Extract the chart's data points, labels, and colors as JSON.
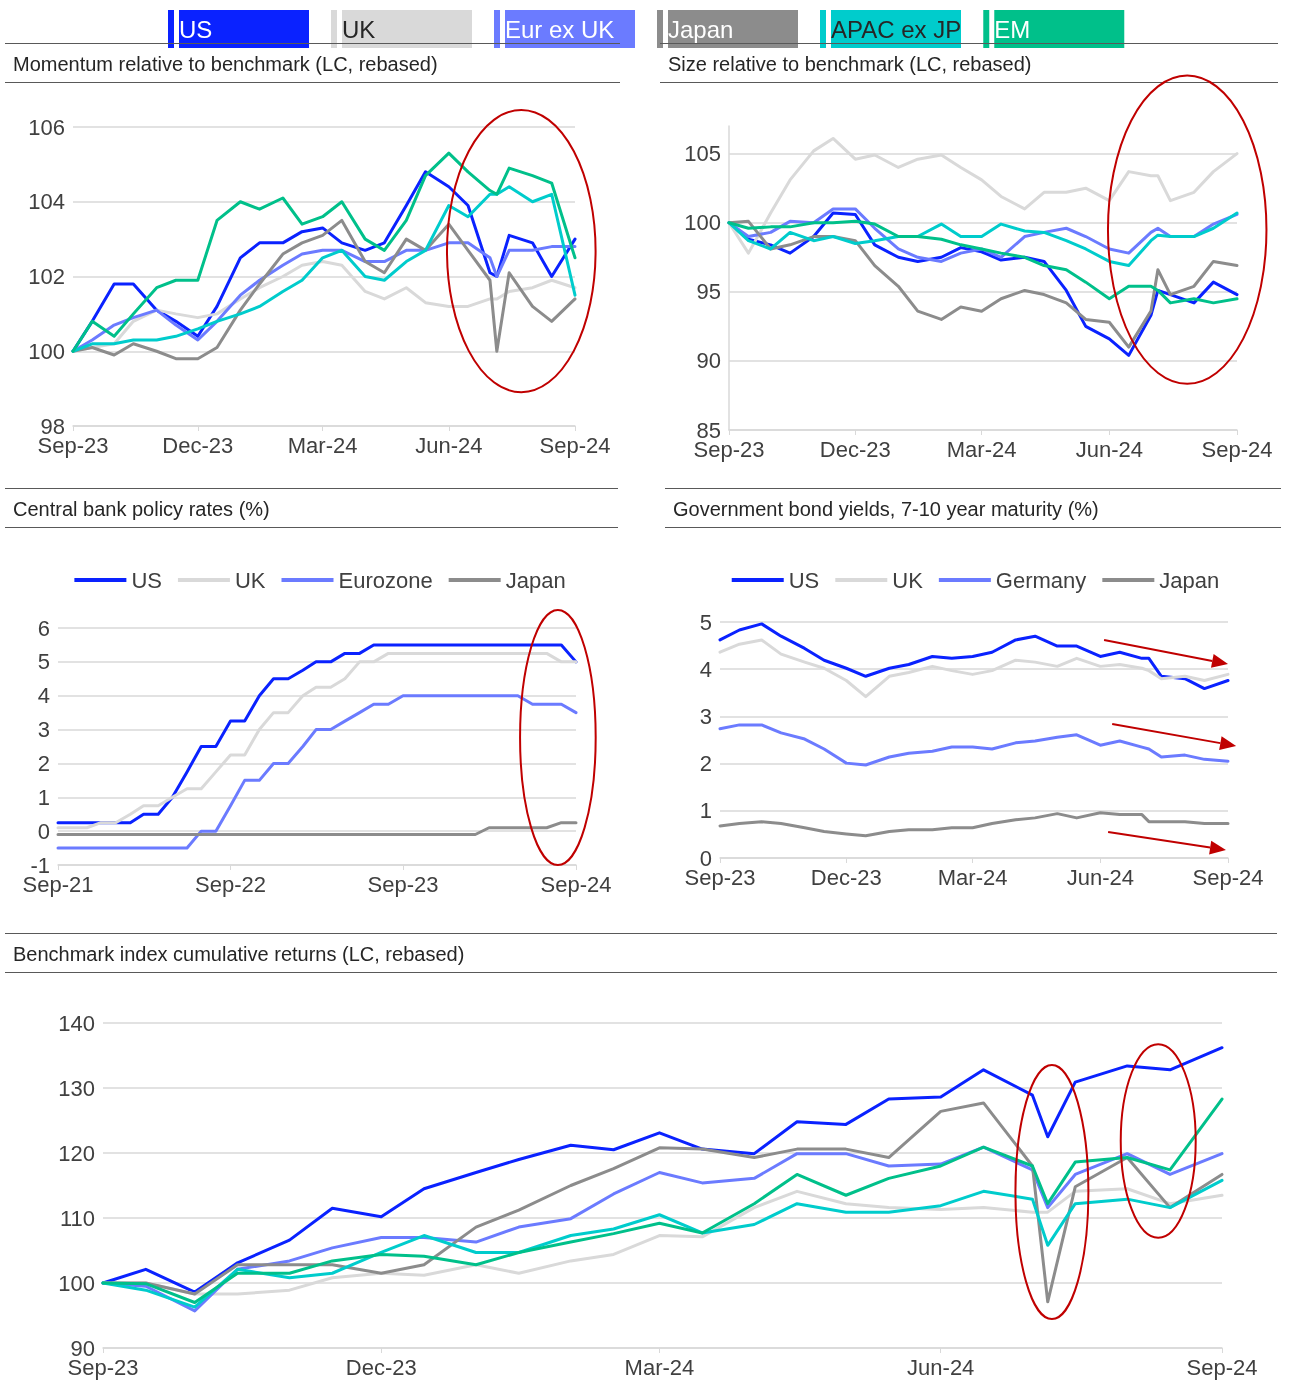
{
  "chart_data": [
    {
      "type": "line",
      "title": "Momentum relative to benchmark (LC, rebased)",
      "legend": "top",
      "grid": "y",
      "x": [
        "2023-09-01",
        "2023-09-15",
        "2023-10-01",
        "2023-10-15",
        "2023-11-01",
        "2023-11-15",
        "2023-12-01",
        "2023-12-15",
        "2024-01-01",
        "2024-01-15",
        "2024-02-01",
        "2024-02-15",
        "2024-03-01",
        "2024-03-15",
        "2024-04-01",
        "2024-04-15",
        "2024-05-01",
        "2024-05-15",
        "2024-06-01",
        "2024-06-15",
        "2024-07-01",
        "2024-07-06",
        "2024-07-15",
        "2024-08-01",
        "2024-08-15",
        "2024-09-01"
      ],
      "xlim": [
        "2023-09-01",
        "2024-09-01"
      ],
      "xticks": [
        {
          "value": "2023-09-01",
          "label": "Sep-23"
        },
        {
          "value": "2023-12-01",
          "label": "Dec-23"
        },
        {
          "value": "2024-03-01",
          "label": "Mar-24"
        },
        {
          "value": "2024-06-01",
          "label": "Jun-24"
        },
        {
          "value": "2024-09-01",
          "label": "Sep-24"
        }
      ],
      "ylim": [
        98,
        106
      ],
      "yticks": [
        98,
        100,
        102,
        104,
        106
      ],
      "series": [
        {
          "name": "US",
          "color": "#0a22ff",
          "values": [
            100,
            100.8,
            101.8,
            101.8,
            101.1,
            100.8,
            100.4,
            101.2,
            102.5,
            102.9,
            102.9,
            103.2,
            103.3,
            102.9,
            102.7,
            102.9,
            103.9,
            104.8,
            104.4,
            103.9,
            102.1,
            102.0,
            103.1,
            102.9,
            102.0,
            103.0
          ]
        },
        {
          "name": "UK",
          "color": "#d9d9d9",
          "values": [
            100,
            100.1,
            100.2,
            100.8,
            101.1,
            101.0,
            100.9,
            101.0,
            101.4,
            101.7,
            102.0,
            102.3,
            102.4,
            102.3,
            101.6,
            101.4,
            101.7,
            101.3,
            101.2,
            101.2,
            101.4,
            101.4,
            101.6,
            101.7,
            101.9,
            101.7
          ]
        },
        {
          "name": "Eur ex UK",
          "color": "#6b7bff",
          "values": [
            100,
            100.3,
            100.7,
            100.9,
            101.1,
            100.7,
            100.3,
            100.8,
            101.5,
            101.9,
            102.3,
            102.6,
            102.7,
            102.7,
            102.4,
            102.4,
            102.7,
            102.7,
            102.9,
            102.9,
            102.5,
            102.0,
            102.7,
            102.7,
            102.8,
            102.8
          ]
        },
        {
          "name": "Japan",
          "color": "#8c8c8c",
          "values": [
            100,
            100.1,
            99.9,
            100.2,
            100.0,
            99.8,
            99.8,
            100.1,
            101.1,
            101.8,
            102.6,
            102.9,
            103.1,
            103.5,
            102.4,
            102.1,
            103.0,
            102.7,
            103.4,
            102.7,
            101.9,
            100.0,
            102.1,
            101.2,
            100.8,
            101.4
          ]
        },
        {
          "name": "APAC ex JP",
          "color": "#00cccc",
          "values": [
            100,
            100.2,
            100.2,
            100.3,
            100.3,
            100.4,
            100.6,
            100.8,
            101.0,
            101.2,
            101.6,
            101.9,
            102.5,
            102.7,
            102.0,
            101.9,
            102.4,
            102.7,
            103.9,
            103.6,
            104.2,
            104.2,
            104.4,
            104.0,
            104.2,
            101.5
          ]
        },
        {
          "name": "EM",
          "color": "#00c08a",
          "values": [
            100,
            100.8,
            100.4,
            101.0,
            101.7,
            101.9,
            101.9,
            103.5,
            104.0,
            103.8,
            104.1,
            103.4,
            103.6,
            104.0,
            103.0,
            102.7,
            103.5,
            104.7,
            105.3,
            104.8,
            104.3,
            104.2,
            104.9,
            104.7,
            104.5,
            102.5
          ]
        }
      ]
    },
    {
      "type": "line",
      "title": "Size relative to benchmark (LC, rebased)",
      "grid": "y",
      "x": [
        "2023-09-01",
        "2023-09-15",
        "2023-10-01",
        "2023-10-15",
        "2023-11-01",
        "2023-11-15",
        "2023-12-01",
        "2023-12-15",
        "2024-01-01",
        "2024-01-15",
        "2024-02-01",
        "2024-02-15",
        "2024-03-01",
        "2024-03-15",
        "2024-04-01",
        "2024-04-15",
        "2024-05-01",
        "2024-05-15",
        "2024-06-01",
        "2024-06-15",
        "2024-07-01",
        "2024-07-06",
        "2024-07-15",
        "2024-08-01",
        "2024-08-15",
        "2024-09-01"
      ],
      "xlim": [
        "2023-09-01",
        "2024-09-01"
      ],
      "xticks": [
        {
          "value": "2023-09-01",
          "label": "Sep-23"
        },
        {
          "value": "2023-12-01",
          "label": "Dec-23"
        },
        {
          "value": "2024-03-01",
          "label": "Mar-24"
        },
        {
          "value": "2024-06-01",
          "label": "Jun-24"
        },
        {
          "value": "2024-09-01",
          "label": "Sep-24"
        }
      ],
      "ylim": [
        85,
        107
      ],
      "yticks": [
        85,
        90,
        95,
        100,
        105
      ],
      "series": [
        {
          "color": "#0a22ff",
          "values": [
            100,
            98.8,
            98.4,
            97.8,
            99.0,
            100.7,
            100.6,
            98.4,
            97.5,
            97.2,
            97.5,
            98.2,
            97.9,
            97.3,
            97.5,
            97.2,
            95.1,
            92.5,
            91.6,
            90.4,
            93.3,
            95.1,
            94.8,
            94.2,
            95.7,
            94.8
          ]
        },
        {
          "color": "#d9d9d9",
          "values": [
            100,
            97.8,
            100.7,
            103.1,
            105.2,
            106.1,
            104.6,
            104.9,
            104.0,
            104.6,
            104.9,
            104.0,
            103.1,
            101.9,
            101.0,
            102.2,
            102.2,
            102.5,
            101.6,
            103.7,
            103.4,
            103.4,
            101.6,
            102.2,
            103.7,
            105.0
          ]
        },
        {
          "color": "#6b7bff",
          "values": [
            100,
            99.0,
            99.3,
            100.1,
            100,
            101.0,
            101.0,
            99.6,
            98.1,
            97.5,
            97.2,
            97.8,
            98.1,
            97.5,
            99.0,
            99.3,
            99.6,
            99.0,
            98.1,
            97.8,
            99.3,
            99.6,
            99.0,
            99.0,
            99.9,
            100.6
          ]
        },
        {
          "color": "#8c8c8c",
          "values": [
            100,
            100.1,
            98.1,
            98.4,
            99.0,
            99.0,
            98.7,
            96.9,
            95.4,
            93.6,
            93.0,
            93.9,
            93.6,
            94.5,
            95.1,
            94.8,
            94.2,
            93.0,
            92.8,
            91.0,
            93.6,
            96.6,
            94.8,
            95.4,
            97.2,
            96.9
          ]
        },
        {
          "color": "#00cccc",
          "values": [
            100,
            98.7,
            98.1,
            99.3,
            98.7,
            99.0,
            98.5,
            98.7,
            99.0,
            99.0,
            99.9,
            99.0,
            99.0,
            99.9,
            99.4,
            99.3,
            98.7,
            98.1,
            97.2,
            96.9,
            98.7,
            99.1,
            99.0,
            99.0,
            99.6,
            100.7
          ]
        },
        {
          "color": "#00c08a",
          "values": [
            100,
            99.6,
            99.7,
            99.7,
            100,
            100,
            100.1,
            99.9,
            99.0,
            99.0,
            98.8,
            98.4,
            98.1,
            97.8,
            97.5,
            96.9,
            96.6,
            95.7,
            94.5,
            95.4,
            95.4,
            95.1,
            94.2,
            94.5,
            94.2,
            94.5
          ]
        }
      ]
    },
    {
      "type": "line",
      "title": "Central bank policy rates (%)",
      "legend": "top",
      "grid": "y",
      "xlim": [
        "2021-09-01",
        "2024-09-01"
      ],
      "xticks": [
        {
          "value": "2021-09-01",
          "label": "Sep-21"
        },
        {
          "value": "2022-09-01",
          "label": "Sep-22"
        },
        {
          "value": "2023-09-01",
          "label": "Sep-23"
        },
        {
          "value": "2024-09-01",
          "label": "Sep-24"
        }
      ],
      "ylim": [
        -1,
        6
      ],
      "yticks": [
        -1,
        0,
        1,
        2,
        3,
        4,
        5,
        6
      ],
      "series": [
        {
          "name": "US",
          "color": "#0a22ff",
          "x": [
            "2021-09-01",
            "2022-02-01",
            "2022-03-01",
            "2022-04-01",
            "2022-05-01",
            "2022-06-01",
            "2022-07-01",
            "2022-08-01",
            "2022-09-01",
            "2022-10-01",
            "2022-11-01",
            "2022-12-01",
            "2023-01-01",
            "2023-02-01",
            "2023-03-01",
            "2023-04-01",
            "2023-05-01",
            "2023-06-01",
            "2023-07-01",
            "2024-08-01",
            "2024-09-01"
          ],
          "values": [
            0.25,
            0.25,
            0.5,
            0.5,
            1.0,
            1.75,
            2.5,
            2.5,
            3.25,
            3.25,
            4.0,
            4.5,
            4.5,
            4.75,
            5.0,
            5.0,
            5.25,
            5.25,
            5.5,
            5.5,
            5.0
          ]
        },
        {
          "name": "UK",
          "color": "#d9d9d9",
          "x": [
            "2021-09-01",
            "2021-11-01",
            "2021-12-01",
            "2022-01-01",
            "2022-02-01",
            "2022-03-01",
            "2022-04-01",
            "2022-05-01",
            "2022-06-01",
            "2022-07-01",
            "2022-08-01",
            "2022-09-01",
            "2022-10-01",
            "2022-11-01",
            "2022-12-01",
            "2023-01-01",
            "2023-02-01",
            "2023-03-01",
            "2023-04-01",
            "2023-05-01",
            "2023-06-01",
            "2023-07-01",
            "2023-08-01",
            "2024-07-01",
            "2024-08-01",
            "2024-09-01"
          ],
          "values": [
            0.1,
            0.1,
            0.25,
            0.25,
            0.5,
            0.75,
            0.75,
            1.0,
            1.25,
            1.25,
            1.75,
            2.25,
            2.25,
            3.0,
            3.5,
            3.5,
            4.0,
            4.25,
            4.25,
            4.5,
            5.0,
            5.0,
            5.25,
            5.25,
            5.0,
            5.0
          ]
        },
        {
          "name": "Eurozone",
          "color": "#6b7bff",
          "x": [
            "2021-09-01",
            "2022-06-01",
            "2022-07-01",
            "2022-08-01",
            "2022-09-01",
            "2022-10-01",
            "2022-11-01",
            "2022-12-01",
            "2023-01-01",
            "2023-02-01",
            "2023-03-01",
            "2023-04-01",
            "2023-05-01",
            "2023-06-01",
            "2023-07-01",
            "2023-08-01",
            "2023-09-01",
            "2024-05-01",
            "2024-06-01",
            "2024-08-01",
            "2024-09-01"
          ],
          "values": [
            -0.5,
            -0.5,
            0,
            0,
            0.75,
            1.5,
            1.5,
            2.0,
            2.0,
            2.5,
            3.0,
            3.0,
            3.25,
            3.5,
            3.75,
            3.75,
            4.0,
            4.0,
            3.75,
            3.75,
            3.5
          ]
        },
        {
          "name": "Japan",
          "color": "#8c8c8c",
          "x": [
            "2021-09-01",
            "2024-02-01",
            "2024-03-01",
            "2024-07-01",
            "2024-08-01",
            "2024-09-01"
          ],
          "values": [
            -0.1,
            -0.1,
            0.1,
            0.1,
            0.25,
            0.25
          ]
        }
      ]
    },
    {
      "type": "line",
      "title": "Government bond yields, 7-10 year maturity (%)",
      "legend": "top",
      "grid": "y",
      "x": [
        "2023-09-01",
        "2023-09-15",
        "2023-10-01",
        "2023-10-15",
        "2023-11-01",
        "2023-11-15",
        "2023-12-01",
        "2023-12-15",
        "2024-01-01",
        "2024-01-15",
        "2024-02-01",
        "2024-02-15",
        "2024-03-01",
        "2024-03-15",
        "2024-04-01",
        "2024-04-15",
        "2024-05-01",
        "2024-05-15",
        "2024-06-01",
        "2024-06-15",
        "2024-07-01",
        "2024-07-06",
        "2024-07-15",
        "2024-08-01",
        "2024-08-15",
        "2024-09-01"
      ],
      "xlim": [
        "2023-09-01",
        "2024-09-01"
      ],
      "xticks": [
        {
          "value": "2023-09-01",
          "label": "Sep-23"
        },
        {
          "value": "2023-12-01",
          "label": "Dec-23"
        },
        {
          "value": "2024-03-01",
          "label": "Mar-24"
        },
        {
          "value": "2024-06-01",
          "label": "Jun-24"
        },
        {
          "value": "2024-09-01",
          "label": "Sep-24"
        }
      ],
      "ylim": [
        0,
        5
      ],
      "yticks": [
        0,
        1,
        2,
        3,
        4,
        5
      ],
      "series": [
        {
          "name": "US",
          "color": "#0a22ff",
          "values": [
            4.62,
            4.83,
            4.96,
            4.7,
            4.44,
            4.19,
            4.02,
            3.85,
            4.02,
            4.1,
            4.27,
            4.23,
            4.27,
            4.36,
            4.62,
            4.7,
            4.49,
            4.49,
            4.27,
            4.36,
            4.23,
            4.23,
            3.85,
            3.8,
            3.59,
            3.76
          ]
        },
        {
          "name": "UK",
          "color": "#d9d9d9",
          "values": [
            4.36,
            4.53,
            4.62,
            4.32,
            4.15,
            4.02,
            3.76,
            3.42,
            3.85,
            3.93,
            4.06,
            3.97,
            3.89,
            3.97,
            4.19,
            4.15,
            4.06,
            4.23,
            4.06,
            4.1,
            4.02,
            3.97,
            3.8,
            3.85,
            3.76,
            3.89
          ]
        },
        {
          "name": "Germany",
          "color": "#6b7bff",
          "values": [
            2.74,
            2.82,
            2.82,
            2.65,
            2.52,
            2.31,
            2.01,
            1.97,
            2.14,
            2.22,
            2.26,
            2.35,
            2.35,
            2.31,
            2.44,
            2.48,
            2.56,
            2.61,
            2.39,
            2.48,
            2.35,
            2.31,
            2.14,
            2.18,
            2.09,
            2.05
          ]
        },
        {
          "name": "Japan",
          "color": "#8c8c8c",
          "values": [
            0.68,
            0.73,
            0.77,
            0.73,
            0.64,
            0.56,
            0.51,
            0.47,
            0.56,
            0.6,
            0.6,
            0.64,
            0.64,
            0.73,
            0.81,
            0.85,
            0.94,
            0.85,
            0.96,
            0.92,
            0.92,
            0.77,
            0.77,
            0.77,
            0.73,
            0.73
          ]
        }
      ]
    },
    {
      "type": "line",
      "title": "Benchmark index cumulative returns (LC, rebased)",
      "grid": "y",
      "x": [
        "2023-09-01",
        "2023-09-15",
        "2023-10-01",
        "2023-10-15",
        "2023-11-01",
        "2023-11-15",
        "2023-12-01",
        "2023-12-15",
        "2024-01-01",
        "2024-01-15",
        "2024-02-01",
        "2024-02-15",
        "2024-03-01",
        "2024-03-15",
        "2024-04-01",
        "2024-04-15",
        "2024-05-01",
        "2024-05-15",
        "2024-06-01",
        "2024-06-15",
        "2024-07-01",
        "2024-07-06",
        "2024-07-15",
        "2024-08-01",
        "2024-08-15",
        "2024-09-01"
      ],
      "xlim": [
        "2023-09-01",
        "2024-09-01"
      ],
      "xticks": [
        {
          "value": "2023-09-01",
          "label": "Sep-23"
        },
        {
          "value": "2023-12-01",
          "label": "Dec-23"
        },
        {
          "value": "2024-03-01",
          "label": "Mar-24"
        },
        {
          "value": "2024-06-01",
          "label": "Jun-24"
        },
        {
          "value": "2024-09-01",
          "label": "Sep-24"
        }
      ],
      "ylim": [
        90,
        140
      ],
      "yticks": [
        90,
        100,
        110,
        120,
        130,
        140
      ],
      "series": [
        {
          "color": "#0a22ff",
          "values": [
            100,
            102.1,
            98.6,
            103.1,
            106.6,
            111.5,
            110.2,
            114.5,
            117.0,
            119.0,
            121.2,
            120.5,
            123.1,
            120.6,
            119.9,
            124.8,
            124.4,
            128.3,
            128.6,
            132.8,
            128.9,
            122.5,
            130.9,
            133.4,
            132.8,
            136.2
          ]
        },
        {
          "color": "#d9d9d9",
          "values": [
            100,
            100,
            98.3,
            98.3,
            98.9,
            100.8,
            101.5,
            101.2,
            102.8,
            101.5,
            103.4,
            104.4,
            107.3,
            107.1,
            111.6,
            114.1,
            112.2,
            111.6,
            111.3,
            111.6,
            110.9,
            110.9,
            114.1,
            114.5,
            112.2,
            113.5
          ]
        },
        {
          "color": "#6b7bff",
          "values": [
            100,
            99.5,
            95.7,
            102.1,
            103.4,
            105.4,
            107.0,
            107.0,
            106.3,
            108.6,
            109.9,
            113.7,
            117.0,
            115.4,
            116.1,
            119.9,
            119.9,
            118.0,
            118.3,
            120.9,
            117.4,
            111.6,
            116.7,
            119.9,
            116.7,
            119.9
          ]
        },
        {
          "color": "#8c8c8c",
          "values": [
            100,
            100,
            98.3,
            102.8,
            102.8,
            102.8,
            101.5,
            102.8,
            108.6,
            111.2,
            115.0,
            117.6,
            120.8,
            120.6,
            119.3,
            120.6,
            120.6,
            119.3,
            126.4,
            127.7,
            118.0,
            97.1,
            114.8,
            119.3,
            111.6,
            116.7
          ]
        },
        {
          "color": "#00cccc",
          "values": [
            100,
            98.9,
            96.3,
            102.1,
            100.8,
            101.5,
            104.7,
            107.3,
            104.7,
            104.7,
            107.3,
            108.3,
            110.5,
            107.7,
            109.0,
            112.2,
            110.9,
            110.9,
            111.9,
            114.1,
            112.9,
            105.8,
            112.2,
            112.9,
            111.6,
            115.8
          ]
        },
        {
          "color": "#00c08a",
          "values": [
            100,
            99.9,
            97.0,
            101.5,
            101.5,
            103.4,
            104.4,
            104.1,
            102.8,
            104.7,
            106.3,
            107.6,
            109.2,
            107.7,
            112.2,
            116.7,
            113.5,
            116.1,
            118.0,
            120.9,
            118.0,
            112.2,
            118.6,
            119.3,
            117.4,
            128.3
          ]
        }
      ]
    }
  ]
}
